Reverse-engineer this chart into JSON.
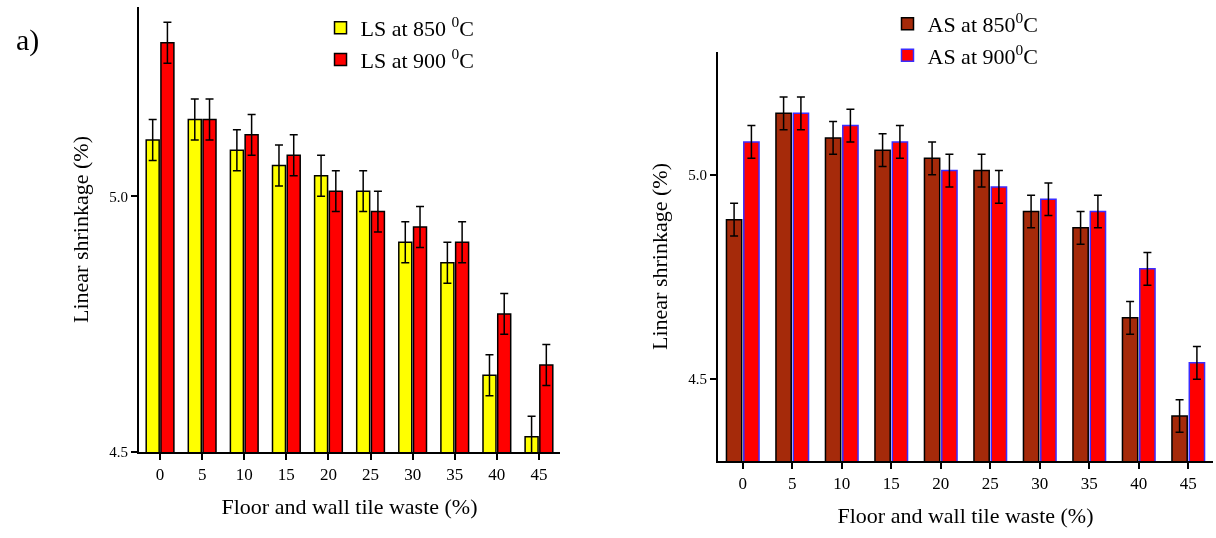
{
  "chart_data": [
    {
      "type": "bar",
      "xlabel": "Floor and wall tile waste (%)",
      "ylabel": "Linear shrinkage (%)",
      "annotations": [
        "a)"
      ],
      "categories": [
        "0",
        "5",
        "10",
        "15",
        "20",
        "25",
        "30",
        "35",
        "40",
        "45"
      ],
      "series": [
        {
          "name": "LS at 850 $^{0}$C",
          "color": "#ffff00",
          "values": [
            5.11,
            5.15,
            5.09,
            5.06,
            5.04,
            5.01,
            4.91,
            4.87,
            4.65,
            4.53
          ],
          "errors": [
            0.04,
            0.04,
            0.04,
            0.04,
            0.04,
            0.04,
            0.04,
            0.04,
            0.04,
            0.04
          ]
        },
        {
          "name": "LS at 900 $^{0}$C",
          "color": "#ff0000",
          "values": [
            5.3,
            5.15,
            5.12,
            5.08,
            5.01,
            4.97,
            4.94,
            4.91,
            4.77,
            4.67
          ],
          "errors": [
            0.04,
            0.04,
            0.04,
            0.04,
            0.04,
            0.04,
            0.04,
            0.04,
            0.04,
            0.04
          ]
        }
      ],
      "ylim": [
        4.5,
        5.37
      ],
      "yticks": [
        4.5,
        {
          "value": 5,
          "label": "5.0"
        }
      ],
      "legend": "top"
    },
    {
      "type": "bar",
      "xlabel": "Floor and wall tile waste (%)",
      "ylabel": "Linear shrinkage (%)",
      "categories": [
        "0",
        "5",
        "10",
        "15",
        "20",
        "25",
        "30",
        "35",
        "40",
        "45"
      ],
      "series": [
        {
          "name": "AS at 850$^{0}$C",
          "color": "#a52a0a",
          "values": [
            4.89,
            5.15,
            5.09,
            5.06,
            5.04,
            5.01,
            4.91,
            4.87,
            4.65,
            4.41
          ],
          "errors": [
            0.04,
            0.04,
            0.04,
            0.04,
            0.04,
            0.04,
            0.04,
            0.04,
            0.04,
            0.04
          ]
        },
        {
          "name": "AS at 900$^{0}$C",
          "color": "#ff0000",
          "values": [
            5.08,
            5.15,
            5.12,
            5.08,
            5.01,
            4.97,
            4.94,
            4.91,
            4.77,
            4.54
          ],
          "errors": [
            0.04,
            0.04,
            0.04,
            0.04,
            0.04,
            0.04,
            0.04,
            0.04,
            0.04,
            0.04
          ]
        }
      ],
      "ylim": [
        4.3,
        5.3
      ],
      "yticks": [
        4.5,
        {
          "value": 5,
          "label": "5.0"
        }
      ],
      "legend": "top"
    }
  ]
}
